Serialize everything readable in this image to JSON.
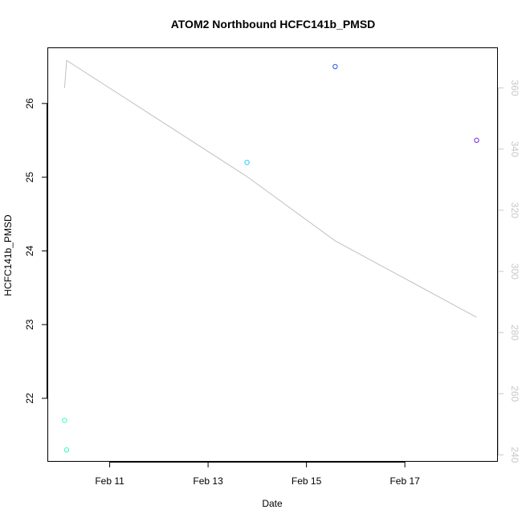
{
  "chart_data": {
    "type": "scatter",
    "title": "ATOM2 Northbound HCFC141b_PMSD",
    "xlabel": "Date",
    "ylabel": "HCFC141b_PMSD",
    "x_ticks": [
      "Feb 11",
      "Feb 13",
      "Feb 15",
      "Feb 17"
    ],
    "y_ticks": [
      22,
      23,
      24,
      25,
      26
    ],
    "y2_ticks": [
      240,
      260,
      280,
      300,
      320,
      340,
      360
    ],
    "xlim": [
      "2016-02-09 18:00",
      "2016-02-18 21:00"
    ],
    "ylim": [
      21.15,
      26.75
    ],
    "y2lim": [
      238,
      373
    ],
    "grid": false,
    "points": [
      {
        "x": "2016-02-10 02:00",
        "y": 21.7,
        "color": "#33ffbb"
      },
      {
        "x": "2016-02-10 03:00",
        "y": 21.3,
        "color": "#33ffaa"
      },
      {
        "x": "2016-02-13 19:00",
        "y": 25.2,
        "color": "#22ccff"
      },
      {
        "x": "2016-02-15 14:00",
        "y": 26.5,
        "color": "#2255ee"
      },
      {
        "x": "2016-02-18 11:00",
        "y": 25.5,
        "color": "#7722ee"
      }
    ],
    "line": {
      "axis": "right",
      "color": "#c0c0c0",
      "x": [
        "2016-02-10 02:00",
        "2016-02-10 03:00",
        "2016-02-13 19:00",
        "2016-02-15 14:00",
        "2016-02-18 11:00"
      ],
      "y": [
        360,
        369,
        331,
        310,
        285
      ]
    }
  }
}
